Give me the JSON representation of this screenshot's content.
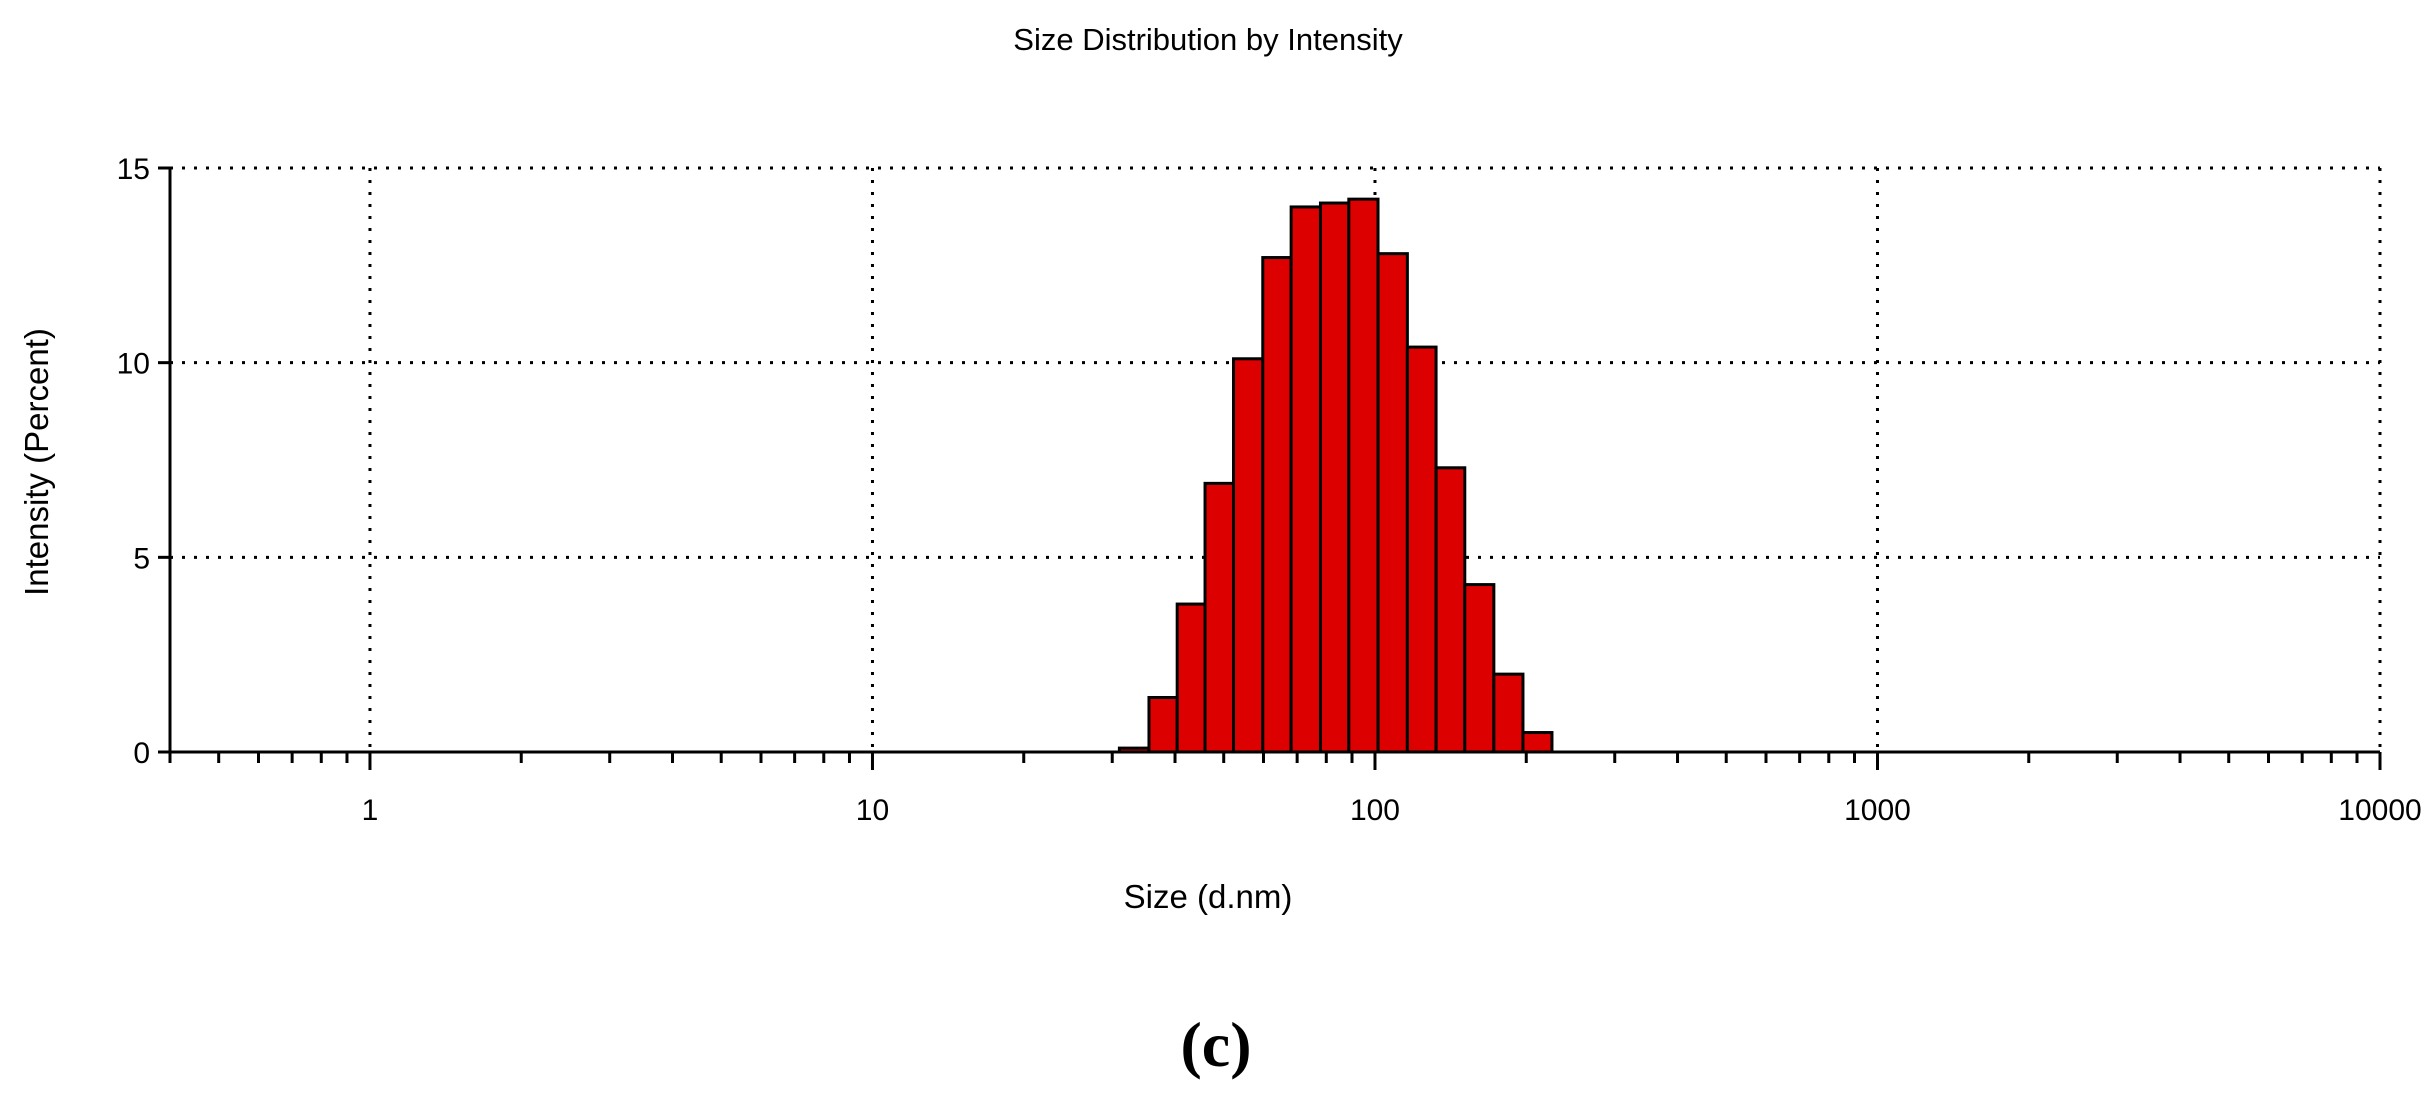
{
  "panel_label": "(c)",
  "colors": {
    "bar_fill": "#dc0000",
    "bar_stroke": "#000000",
    "grid": "#000000",
    "background": "#ffffff"
  },
  "chart_data": {
    "type": "bar",
    "title": "Size Distribution by Intensity",
    "xlabel": "Size (d.nm)",
    "ylabel": "Intensity (Percent)",
    "x_scale": "log",
    "xlim": [
      0.4,
      10000
    ],
    "ylim": [
      0,
      15
    ],
    "x_ticks": [
      1,
      10,
      100,
      1000,
      10000
    ],
    "x_tick_labels": [
      "1",
      "10",
      "100",
      "1000",
      "10000"
    ],
    "y_ticks": [
      0,
      5,
      10,
      15
    ],
    "y_tick_labels": [
      "0",
      "5",
      "10",
      "15"
    ],
    "grid": true,
    "bins": [
      {
        "x_start": 31.0,
        "x_end": 35.5,
        "value": 0.1
      },
      {
        "x_start": 35.5,
        "x_end": 40.4,
        "value": 1.4
      },
      {
        "x_start": 40.4,
        "x_end": 45.9,
        "value": 3.8
      },
      {
        "x_start": 45.9,
        "x_end": 52.3,
        "value": 6.9
      },
      {
        "x_start": 52.3,
        "x_end": 59.8,
        "value": 10.1
      },
      {
        "x_start": 59.8,
        "x_end": 68.1,
        "value": 12.7
      },
      {
        "x_start": 68.1,
        "x_end": 77.9,
        "value": 14.0
      },
      {
        "x_start": 77.9,
        "x_end": 88.7,
        "value": 14.1
      },
      {
        "x_start": 88.7,
        "x_end": 101.4,
        "value": 14.2
      },
      {
        "x_start": 101.4,
        "x_end": 116.0,
        "value": 12.8
      },
      {
        "x_start": 116.0,
        "x_end": 132.3,
        "value": 10.4
      },
      {
        "x_start": 132.3,
        "x_end": 150.9,
        "value": 7.3
      },
      {
        "x_start": 150.9,
        "x_end": 172.4,
        "value": 4.3
      },
      {
        "x_start": 172.4,
        "x_end": 197.0,
        "value": 2.0
      },
      {
        "x_start": 197.0,
        "x_end": 225.0,
        "value": 0.5
      }
    ]
  }
}
